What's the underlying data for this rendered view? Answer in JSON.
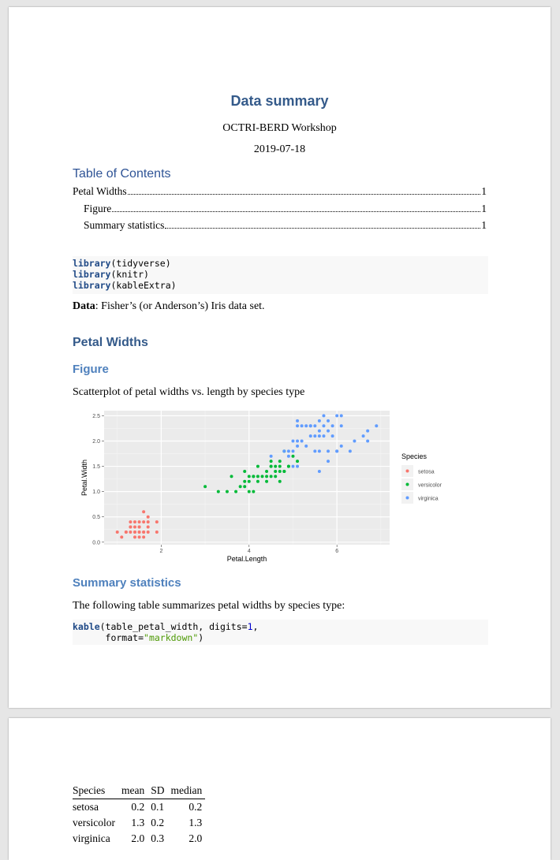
{
  "doc": {
    "title": "Data summary",
    "author": "OCTRI-BERD Workshop",
    "date": "2019-07-18"
  },
  "toc": {
    "heading": "Table of Contents",
    "entries": [
      {
        "label": "Petal Widths",
        "page": "1"
      },
      {
        "label": "Figure",
        "page": "1"
      },
      {
        "label": "Summary statistics",
        "page": "1"
      }
    ]
  },
  "code1": {
    "lines": [
      {
        "fn": "library",
        "rest": "(tidyverse)"
      },
      {
        "fn": "library",
        "rest": "(knitr)"
      },
      {
        "fn": "library",
        "rest": "(kableExtra)"
      }
    ]
  },
  "data_note": {
    "label": "Data",
    "text": ": Fisher’s (or Anderson’s) Iris data set."
  },
  "sections": {
    "petal_widths": "Petal Widths",
    "figure": "Figure",
    "figure_caption": "Scatterplot of petal widths vs. length by species type",
    "summary": "Summary statistics",
    "summary_text": "The following table summarizes petal widths by species type:"
  },
  "code2": {
    "fn": "kable",
    "arg1": "(table_petal_width, digits=",
    "num": "1",
    "comma": ",",
    "indent": "      format=",
    "str": "\"markdown\"",
    "close": ")"
  },
  "table": {
    "headers": [
      "Species",
      "mean",
      "SD",
      "median"
    ],
    "rows": [
      [
        "setosa",
        "0.2",
        "0.1",
        "0.2"
      ],
      [
        "versicolor",
        "1.3",
        "0.2",
        "1.3"
      ],
      [
        "virginica",
        "2.0",
        "0.3",
        "2.0"
      ]
    ]
  },
  "chart_data": {
    "type": "scatter",
    "title": "",
    "xlabel": "Petal.Length",
    "ylabel": "Petal.Width",
    "xlim": [
      0.7,
      7.2
    ],
    "ylim": [
      -0.05,
      2.6
    ],
    "x_ticks": [
      "2",
      "4",
      "6"
    ],
    "x_tick_values": [
      2,
      4,
      6
    ],
    "y_ticks": [
      "0.0",
      "0.5",
      "1.0",
      "1.5",
      "2.0",
      "2.5"
    ],
    "y_tick_values": [
      0.0,
      0.5,
      1.0,
      1.5,
      2.0,
      2.5
    ],
    "grid": true,
    "legend_title": "Species",
    "legend_position": "right",
    "series": [
      {
        "name": "setosa",
        "color": "#f8766d",
        "points": [
          [
            1.1,
            0.1
          ],
          [
            1.2,
            0.2
          ],
          [
            1.3,
            0.2
          ],
          [
            1.4,
            0.2
          ],
          [
            1.5,
            0.2
          ],
          [
            1.6,
            0.2
          ],
          [
            1.7,
            0.2
          ],
          [
            1.9,
            0.2
          ],
          [
            1.0,
            0.2
          ],
          [
            1.3,
            0.3
          ],
          [
            1.4,
            0.3
          ],
          [
            1.5,
            0.3
          ],
          [
            1.7,
            0.3
          ],
          [
            1.4,
            0.1
          ],
          [
            1.5,
            0.1
          ],
          [
            1.6,
            0.1
          ],
          [
            1.3,
            0.4
          ],
          [
            1.5,
            0.4
          ],
          [
            1.6,
            0.4
          ],
          [
            1.7,
            0.4
          ],
          [
            1.4,
            0.4
          ],
          [
            1.9,
            0.4
          ],
          [
            1.6,
            0.6
          ],
          [
            1.7,
            0.5
          ],
          [
            1.3,
            0.3
          ],
          [
            1.5,
            0.3
          ],
          [
            1.2,
            0.2
          ],
          [
            1.6,
            0.2
          ],
          [
            1.4,
            0.2
          ],
          [
            1.5,
            0.2
          ]
        ]
      },
      {
        "name": "versicolor",
        "color": "#00ba38",
        "points": [
          [
            3.0,
            1.1
          ],
          [
            3.3,
            1.0
          ],
          [
            3.5,
            1.0
          ],
          [
            3.7,
            1.0
          ],
          [
            3.9,
            1.1
          ],
          [
            4.0,
            1.0
          ],
          [
            4.1,
            1.0
          ],
          [
            3.6,
            1.3
          ],
          [
            3.9,
            1.2
          ],
          [
            3.9,
            1.4
          ],
          [
            4.0,
            1.2
          ],
          [
            4.0,
            1.3
          ],
          [
            4.1,
            1.3
          ],
          [
            4.2,
            1.2
          ],
          [
            4.2,
            1.3
          ],
          [
            4.3,
            1.3
          ],
          [
            4.4,
            1.2
          ],
          [
            4.4,
            1.3
          ],
          [
            4.4,
            1.4
          ],
          [
            4.5,
            1.3
          ],
          [
            4.5,
            1.5
          ],
          [
            4.6,
            1.3
          ],
          [
            4.6,
            1.4
          ],
          [
            4.6,
            1.5
          ],
          [
            4.7,
            1.2
          ],
          [
            4.7,
            1.4
          ],
          [
            4.7,
            1.5
          ],
          [
            4.7,
            1.6
          ],
          [
            4.8,
            1.4
          ],
          [
            4.8,
            1.8
          ],
          [
            4.9,
            1.5
          ],
          [
            5.0,
            1.7
          ],
          [
            5.1,
            1.6
          ],
          [
            4.5,
            1.6
          ],
          [
            4.9,
            1.5
          ],
          [
            4.2,
            1.5
          ],
          [
            4.1,
            1.3
          ],
          [
            3.8,
            1.1
          ],
          [
            4.5,
            1.5
          ],
          [
            4.8,
            1.4
          ]
        ]
      },
      {
        "name": "virginica",
        "color": "#619cff",
        "points": [
          [
            4.5,
            1.7
          ],
          [
            4.8,
            1.8
          ],
          [
            4.9,
            1.8
          ],
          [
            5.0,
            1.5
          ],
          [
            5.0,
            2.0
          ],
          [
            5.1,
            1.5
          ],
          [
            5.1,
            1.9
          ],
          [
            5.1,
            2.0
          ],
          [
            5.1,
            2.3
          ],
          [
            5.1,
            2.4
          ],
          [
            5.2,
            2.0
          ],
          [
            5.2,
            2.3
          ],
          [
            5.3,
            1.9
          ],
          [
            5.3,
            2.3
          ],
          [
            5.4,
            2.1
          ],
          [
            5.4,
            2.3
          ],
          [
            5.5,
            1.8
          ],
          [
            5.5,
            2.1
          ],
          [
            5.5,
            2.3
          ],
          [
            5.6,
            1.8
          ],
          [
            5.6,
            2.1
          ],
          [
            5.6,
            2.2
          ],
          [
            5.6,
            2.4
          ],
          [
            5.7,
            2.1
          ],
          [
            5.7,
            2.3
          ],
          [
            5.7,
            2.5
          ],
          [
            5.8,
            1.6
          ],
          [
            5.8,
            1.8
          ],
          [
            5.8,
            2.2
          ],
          [
            5.8,
            2.4
          ],
          [
            5.9,
            2.1
          ],
          [
            5.9,
            2.3
          ],
          [
            6.0,
            1.8
          ],
          [
            6.0,
            2.5
          ],
          [
            6.1,
            1.9
          ],
          [
            6.1,
            2.3
          ],
          [
            6.1,
            2.5
          ],
          [
            6.3,
            1.8
          ],
          [
            6.4,
            2.0
          ],
          [
            6.6,
            2.1
          ],
          [
            6.7,
            2.0
          ],
          [
            6.7,
            2.2
          ],
          [
            6.9,
            2.3
          ],
          [
            5.0,
            1.8
          ],
          [
            5.6,
            1.4
          ],
          [
            4.9,
            1.7
          ],
          [
            6.0,
            1.8
          ],
          [
            5.4,
            2.3
          ]
        ]
      }
    ]
  }
}
